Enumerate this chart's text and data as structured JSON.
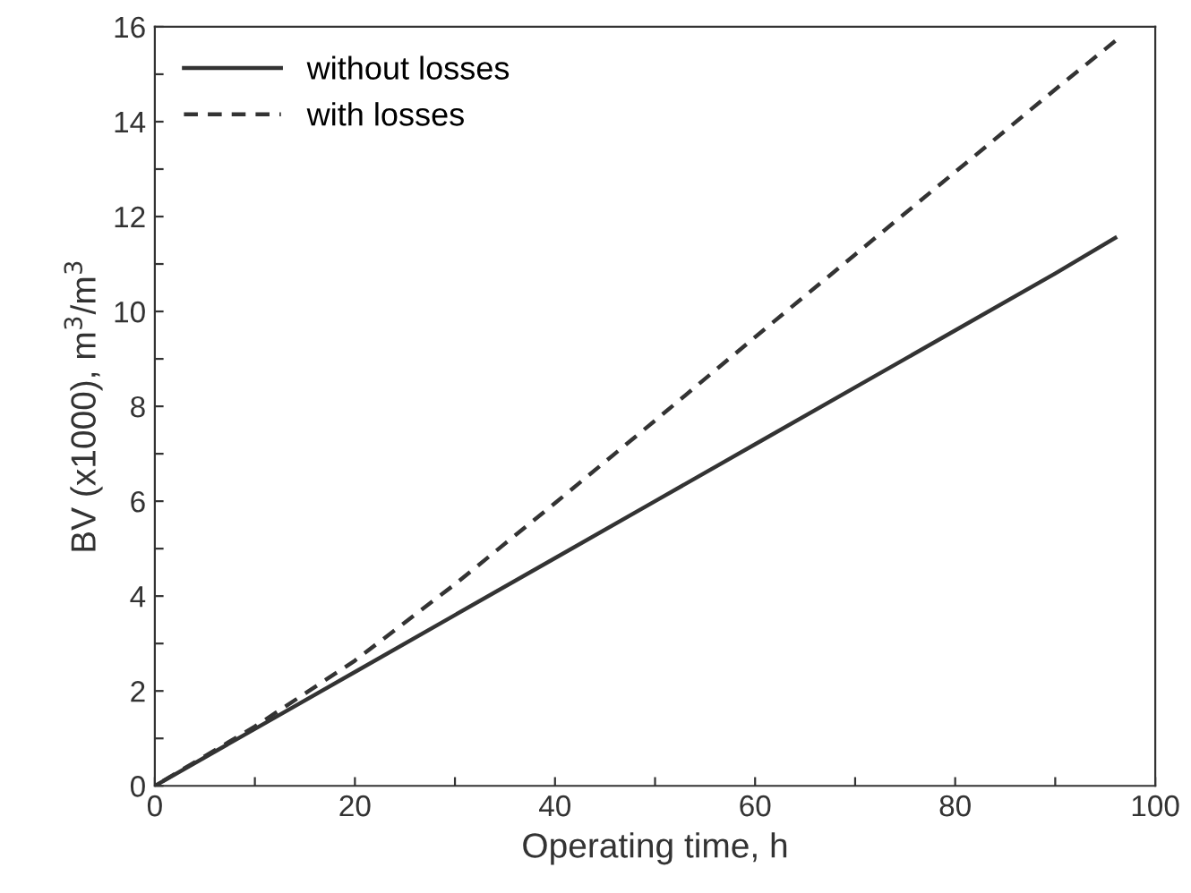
{
  "chart_data": {
    "type": "line",
    "xlabel": "Operating time, h",
    "ylabel": "BV (x1000), m$^{3}$/m$^{3}$",
    "x": [
      0,
      10,
      20,
      30,
      40,
      50,
      60,
      70,
      80,
      90,
      96
    ],
    "series": [
      {
        "name": "without losses",
        "color": "#333333",
        "line_style": "solid",
        "values": [
          0,
          1.2,
          2.4,
          3.6,
          4.8,
          6.0,
          7.2,
          8.4,
          9.6,
          10.8,
          11.55
        ]
      },
      {
        "name": "with losses",
        "color": "#333333",
        "line_style": "dashed",
        "values": [
          0,
          1.25,
          2.64,
          4.25,
          5.96,
          7.7,
          9.46,
          11.2,
          12.94,
          14.68,
          15.7
        ]
      }
    ],
    "xlim": [
      0,
      100
    ],
    "ylim": [
      0,
      16
    ],
    "xticks": [
      0,
      {
        "value": 10,
        "label": null
      },
      20,
      {
        "value": 30,
        "label": null
      },
      40,
      {
        "value": 50,
        "label": null
      },
      60,
      {
        "value": 70,
        "label": null
      },
      80,
      {
        "value": 90,
        "label": null
      },
      100
    ],
    "yticks": [
      0,
      {
        "value": 1,
        "label": null
      },
      2,
      {
        "value": 3,
        "label": null
      },
      4,
      {
        "value": 5,
        "label": null
      },
      6,
      {
        "value": 7,
        "label": null
      },
      8,
      {
        "value": 9,
        "label": null
      },
      10,
      {
        "value": 11,
        "label": null
      },
      12,
      {
        "value": 13,
        "label": null
      },
      14,
      {
        "value": 15,
        "label": null
      },
      16
    ],
    "grid": false,
    "legend": "top left",
    "marker": "none"
  }
}
